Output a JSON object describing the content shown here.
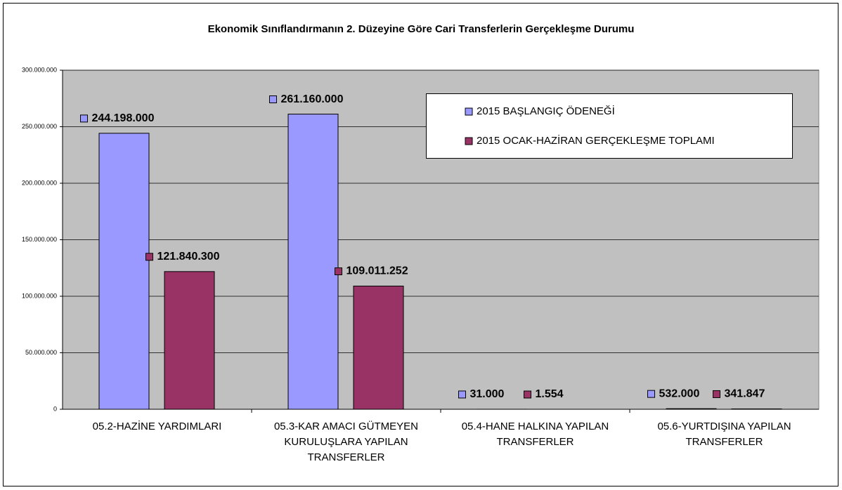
{
  "chart_data": {
    "type": "bar",
    "title": "Ekonomik Sınıflandırmanın 2. Düzeyine Göre Cari Transferlerin Gerçekleşme Durumu",
    "categories": [
      "05.2-HAZİNE YARDIMLARI",
      "05.3-KAR AMACI GÜTMEYEN KURULUŞLARA YAPILAN TRANSFERLER",
      "05.4-HANE HALKINA YAPILAN TRANSFERLER",
      "05.6-YURTDIŞINA YAPILAN TRANSFERLER"
    ],
    "series": [
      {
        "name": "2015 BAŞLANGIÇ ÖDENEĞİ",
        "color": "#9999ff",
        "values": [
          244198000,
          261160000,
          31000,
          532000
        ],
        "value_labels": [
          "244.198.000",
          "261.160.000",
          "31.000",
          "532.000"
        ]
      },
      {
        "name": "2015 OCAK-HAZİRAN GERÇEKLEŞME TOPLAMI",
        "color": "#993366",
        "values": [
          121840300,
          109011252,
          1554,
          341847
        ],
        "value_labels": [
          "121.840.300",
          "109.011.252",
          "1.554",
          "341.847"
        ]
      }
    ],
    "ylim": [
      0,
      300000000
    ],
    "yticks": [
      0,
      {
        "value": 50000000,
        "label": "50.000.000"
      },
      {
        "value": 100000000,
        "label": "100.000.000"
      },
      {
        "value": 150000000,
        "label": "150.000.000"
      },
      {
        "value": 200000000,
        "label": "200.000.000"
      },
      {
        "value": 250000000,
        "label": "250.000.000"
      },
      {
        "value": 300000000,
        "label": "300.000.000"
      }
    ],
    "grid": true,
    "legend": "top-right"
  }
}
